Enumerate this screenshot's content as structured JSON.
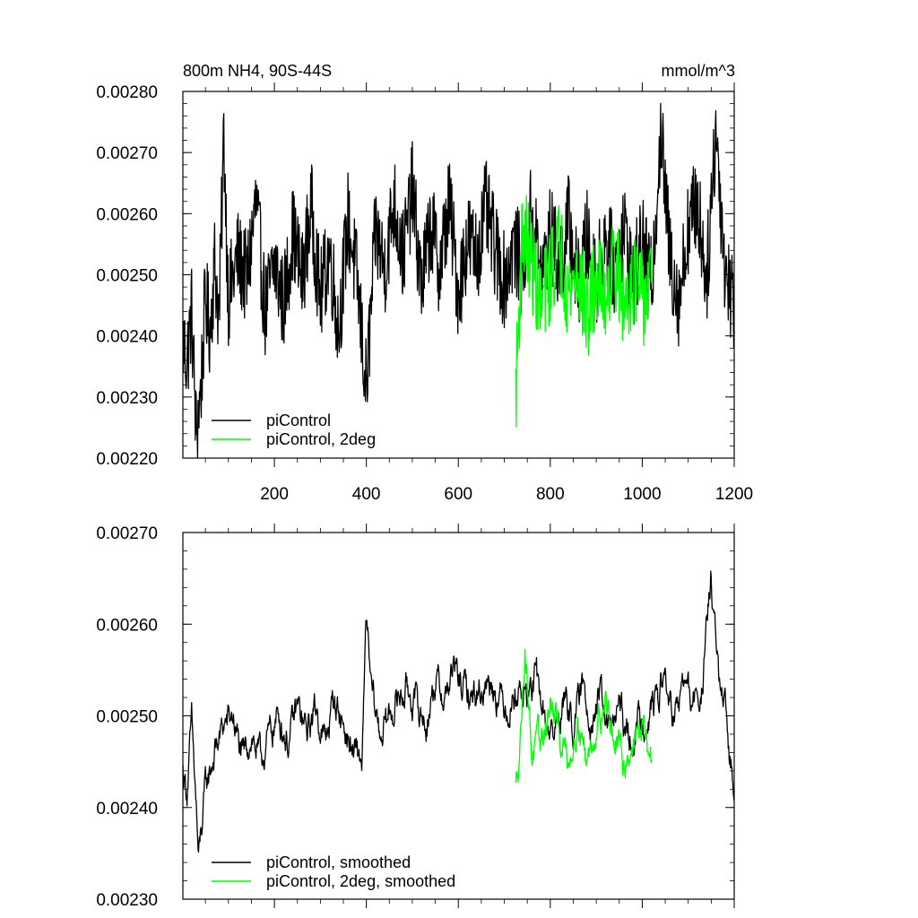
{
  "chart_data": [
    {
      "type": "line",
      "title_left": "800m NH4, 90S-44S",
      "title_right": "mmol/m^3",
      "xlim": [
        1,
        1200
      ],
      "ylim": [
        0.0022,
        0.0028
      ],
      "x_ticks": [
        200,
        400,
        600,
        800,
        1000,
        1200
      ],
      "x_tick_labels": [
        "200",
        "400",
        "600",
        "800",
        "1000",
        "1200"
      ],
      "y_ticks": [
        0.0022,
        0.0023,
        0.0024,
        0.0025,
        0.0026,
        0.0027,
        0.0028
      ],
      "y_tick_labels": [
        "0.00220",
        "0.00230",
        "0.00240",
        "0.00250",
        "0.00260",
        "0.00270",
        "0.00280"
      ],
      "legend_placement": "bottom-left",
      "series": [
        {
          "name": "piControl",
          "color": "#000000",
          "x_start": 1,
          "x_end": 1200,
          "points": [
            [
              1,
              0.00239
            ],
            [
              10,
              0.00236
            ],
            [
              20,
              0.00244
            ],
            [
              30,
              0.00224
            ],
            [
              40,
              0.00231
            ],
            [
              50,
              0.00246
            ],
            [
              60,
              0.00241
            ],
            [
              70,
              0.00252
            ],
            [
              80,
              0.00243
            ],
            [
              90,
              0.00273
            ],
            [
              100,
              0.00246
            ],
            [
              120,
              0.00253
            ],
            [
              140,
              0.00249
            ],
            [
              160,
              0.00262
            ],
            [
              180,
              0.00244
            ],
            [
              200,
              0.00252
            ],
            [
              220,
              0.00245
            ],
            [
              240,
              0.00257
            ],
            [
              260,
              0.00249
            ],
            [
              280,
              0.00261
            ],
            [
              300,
              0.00246
            ],
            [
              320,
              0.00254
            ],
            [
              340,
              0.00241
            ],
            [
              360,
              0.00259
            ],
            [
              380,
              0.00249
            ],
            [
              400,
              0.00231
            ],
            [
              420,
              0.00257
            ],
            [
              440,
              0.00251
            ],
            [
              460,
              0.00262
            ],
            [
              480,
              0.00253
            ],
            [
              500,
              0.00264
            ],
            [
              520,
              0.00248
            ],
            [
              540,
              0.00258
            ],
            [
              560,
              0.00251
            ],
            [
              580,
              0.00262
            ],
            [
              600,
              0.00247
            ],
            [
              620,
              0.00256
            ],
            [
              640,
              0.00253
            ],
            [
              660,
              0.00261
            ],
            [
              680,
              0.00254
            ],
            [
              700,
              0.00249
            ],
            [
              720,
              0.00255
            ],
            [
              740,
              0.00251
            ],
            [
              760,
              0.00261
            ],
            [
              780,
              0.00249
            ],
            [
              800,
              0.00257
            ],
            [
              820,
              0.00251
            ],
            [
              840,
              0.00259
            ],
            [
              860,
              0.00248
            ],
            [
              880,
              0.00256
            ],
            [
              900,
              0.00249
            ],
            [
              920,
              0.00256
            ],
            [
              940,
              0.00251
            ],
            [
              960,
              0.00258
            ],
            [
              980,
              0.00249
            ],
            [
              1000,
              0.00255
            ],
            [
              1020,
              0.00248
            ],
            [
              1040,
              0.00274
            ],
            [
              1060,
              0.00253
            ],
            [
              1080,
              0.00246
            ],
            [
              1100,
              0.00258
            ],
            [
              1120,
              0.00262
            ],
            [
              1140,
              0.00249
            ],
            [
              1160,
              0.00274
            ],
            [
              1180,
              0.00251
            ],
            [
              1200,
              0.00245
            ]
          ],
          "spread": 8e-05,
          "smoothed": false
        },
        {
          "name": "piControl, 2deg",
          "color": "#00ff00",
          "x_start": 725,
          "x_end": 1020,
          "points": [
            [
              725,
              0.00231
            ],
            [
              740,
              0.00258
            ],
            [
              760,
              0.00252
            ],
            [
              780,
              0.00245
            ],
            [
              800,
              0.0025
            ],
            [
              820,
              0.00255
            ],
            [
              840,
              0.00247
            ],
            [
              860,
              0.00251
            ],
            [
              880,
              0.00243
            ],
            [
              900,
              0.00249
            ],
            [
              920,
              0.00247
            ],
            [
              940,
              0.00253
            ],
            [
              960,
              0.00245
            ],
            [
              980,
              0.0025
            ],
            [
              1000,
              0.00246
            ],
            [
              1020,
              0.00248
            ]
          ],
          "spread": 8e-05,
          "smoothed": false
        }
      ]
    },
    {
      "type": "line",
      "xlim": [
        1,
        1200
      ],
      "ylim": [
        0.0023,
        0.0027
      ],
      "x_ticks": [
        200,
        400,
        600,
        800,
        1000,
        1200
      ],
      "y_ticks": [
        0.0023,
        0.0024,
        0.0025,
        0.0026,
        0.0027
      ],
      "y_tick_labels": [
        "0.00230",
        "0.00240",
        "0.00250",
        "0.00260",
        "0.00270"
      ],
      "legend_placement": "bottom-left",
      "series": [
        {
          "name": "piControl, smoothed",
          "color": "#000000",
          "x_start": 1,
          "x_end": 1200,
          "points": [
            [
              1,
              0.00244
            ],
            [
              10,
              0.00242
            ],
            [
              20,
              0.00249
            ],
            [
              30,
              0.0024
            ],
            [
              35,
              0.00234
            ],
            [
              50,
              0.00242
            ],
            [
              70,
              0.00246
            ],
            [
              90,
              0.00249
            ],
            [
              110,
              0.0025
            ],
            [
              130,
              0.00245
            ],
            [
              150,
              0.00248
            ],
            [
              170,
              0.00245
            ],
            [
              190,
              0.00248
            ],
            [
              210,
              0.0025
            ],
            [
              230,
              0.00247
            ],
            [
              250,
              0.00251
            ],
            [
              270,
              0.00248
            ],
            [
              290,
              0.00251
            ],
            [
              310,
              0.00247
            ],
            [
              330,
              0.00252
            ],
            [
              350,
              0.00249
            ],
            [
              370,
              0.00246
            ],
            [
              390,
              0.00245
            ],
            [
              400,
              0.0026
            ],
            [
              410,
              0.00253
            ],
            [
              430,
              0.00248
            ],
            [
              450,
              0.0025
            ],
            [
              470,
              0.00252
            ],
            [
              490,
              0.00253
            ],
            [
              510,
              0.00251
            ],
            [
              530,
              0.00249
            ],
            [
              550,
              0.00254
            ],
            [
              570,
              0.00252
            ],
            [
              590,
              0.00255
            ],
            [
              610,
              0.00253
            ],
            [
              630,
              0.00252
            ],
            [
              650,
              0.00253
            ],
            [
              670,
              0.00254
            ],
            [
              690,
              0.00252
            ],
            [
              710,
              0.00251
            ],
            [
              730,
              0.00253
            ],
            [
              750,
              0.00252
            ],
            [
              770,
              0.00254
            ],
            [
              790,
              0.00249
            ],
            [
              810,
              0.00248
            ],
            [
              830,
              0.00252
            ],
            [
              850,
              0.00249
            ],
            [
              870,
              0.00253
            ],
            [
              890,
              0.0025
            ],
            [
              910,
              0.00252
            ],
            [
              930,
              0.00248
            ],
            [
              950,
              0.00251
            ],
            [
              970,
              0.00247
            ],
            [
              990,
              0.00249
            ],
            [
              1010,
              0.0025
            ],
            [
              1030,
              0.00252
            ],
            [
              1050,
              0.00254
            ],
            [
              1070,
              0.00249
            ],
            [
              1090,
              0.00254
            ],
            [
              1110,
              0.00251
            ],
            [
              1130,
              0.00253
            ],
            [
              1150,
              0.00265
            ],
            [
              1160,
              0.00258
            ],
            [
              1170,
              0.00252
            ],
            [
              1180,
              0.0025
            ],
            [
              1190,
              0.00245
            ],
            [
              1200,
              0.00243
            ]
          ],
          "spread": 2.5e-05,
          "smoothed": true
        },
        {
          "name": "piControl, 2deg, smoothed",
          "color": "#00ff00",
          "x_start": 725,
          "x_end": 1020,
          "points": [
            [
              725,
              0.00242
            ],
            [
              735,
              0.00248
            ],
            [
              745,
              0.00258
            ],
            [
              760,
              0.00246
            ],
            [
              780,
              0.00247
            ],
            [
              800,
              0.00251
            ],
            [
              820,
              0.00248
            ],
            [
              840,
              0.00245
            ],
            [
              860,
              0.0025
            ],
            [
              880,
              0.00245
            ],
            [
              900,
              0.00249
            ],
            [
              920,
              0.00252
            ],
            [
              940,
              0.00247
            ],
            [
              960,
              0.00245
            ],
            [
              980,
              0.00247
            ],
            [
              1000,
              0.00249
            ],
            [
              1020,
              0.00245
            ]
          ],
          "spread": 2.5e-05,
          "smoothed": true
        }
      ]
    }
  ],
  "colors": {
    "black_series": "#000000",
    "green_series": "#00ff00"
  }
}
